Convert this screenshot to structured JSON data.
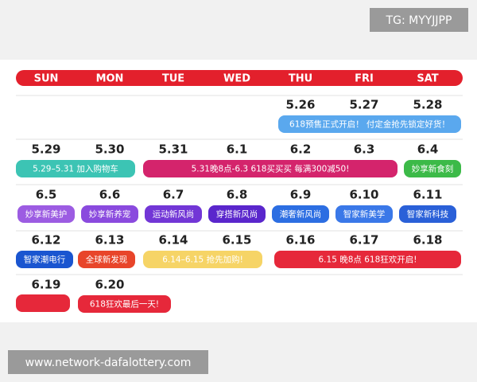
{
  "watermark_top": "TG: MYYJJPP",
  "watermark_bottom": "www.network-dafalottery.com",
  "weekdays": [
    "SUN",
    "MON",
    "TUE",
    "WED",
    "THU",
    "FRI",
    "SAT"
  ],
  "weeks": [
    {
      "dates": [
        "5.26",
        "5.27",
        "5.28"
      ],
      "events": [
        "618预售正式开启！ 付定金抢先锁定好货！"
      ]
    },
    {
      "dates": [
        "5.29",
        "5.30",
        "5.31",
        "6.1",
        "6.2",
        "6.3",
        "6.4"
      ],
      "events": [
        "5.29–5.31 加入购物车",
        "5.31晚8点-6.3   618买买买   每满300减50!",
        "妙享新食刻"
      ]
    },
    {
      "dates": [
        "6.5",
        "6.6",
        "6.7",
        "6.8",
        "6.9",
        "6.10",
        "6.11"
      ],
      "events": [
        "妙享新美护",
        "妙享新养宠",
        "运动新风尚",
        "穿搭新风尚",
        "潮奢新风尚",
        "智家新美学",
        "智家新科技"
      ]
    },
    {
      "dates": [
        "6.12",
        "6.13",
        "6.14",
        "6.15",
        "6.16",
        "6.17",
        "6.18"
      ],
      "events": [
        "智家潮电行",
        "全球新发现",
        "6.14–6.15 抢先加购!",
        "6.15 晚8点 618狂欢开启!"
      ]
    },
    {
      "dates": [
        "6.19",
        "6.20"
      ],
      "events": [
        "618狂欢最后一天!"
      ]
    }
  ]
}
